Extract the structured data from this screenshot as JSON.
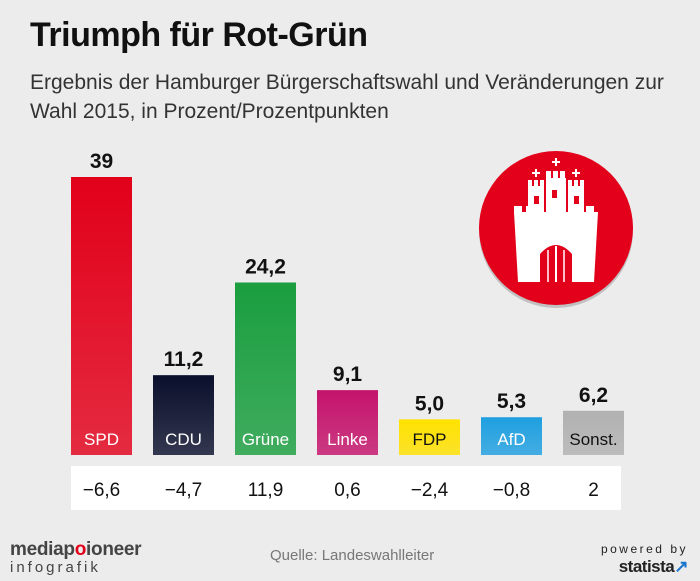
{
  "title": "Triumph für Rot-Grün",
  "subtitle": "Ergebnis der Hamburger Bürgerschaftswahl und Veränderungen zur Wahl 2015, in Prozent/Prozentpunkten",
  "chart_data": {
    "type": "bar",
    "title": "Triumph für Rot-Grün",
    "subtitle": "Ergebnis der Hamburger Bürgerschaftswahl und Veränderungen zur Wahl 2015, in Prozent/Prozentpunkten",
    "categories": [
      "SPD",
      "CDU",
      "Grüne",
      "Linke",
      "FDP",
      "AfD",
      "Sonst."
    ],
    "values": [
      39,
      11.2,
      24.2,
      9.1,
      5.0,
      5.3,
      6.2
    ],
    "value_labels": [
      "39",
      "11,2",
      "24,2",
      "9,1",
      "5,0",
      "5,3",
      "6,2"
    ],
    "change_labels": [
      "−6,6",
      "−4,7",
      "11,9",
      "0,6",
      "−2,4",
      "−0,8",
      "2"
    ],
    "changes": [
      -6.6,
      -4.7,
      11.9,
      0.6,
      -2.4,
      -0.8,
      2
    ],
    "colors": [
      "#e2001a",
      "#0a0f2c",
      "#1a9e3f",
      "#c4136b",
      "#ffe100",
      "#1f9fe0",
      "#b1b1b1"
    ],
    "label_colors": [
      "#ffffff",
      "#ffffff",
      "#ffffff",
      "#ffffff",
      "#111111",
      "#ffffff",
      "#111111"
    ],
    "ylim": [
      0,
      39
    ],
    "xlabel": "",
    "ylabel": ""
  },
  "emblem": {
    "name": "Hamburg coat of arms",
    "circle_color": "#e2001a",
    "castle_color": "#ffffff"
  },
  "footer": {
    "logo_line1_a": "media",
    "logo_line1_b": "p",
    "logo_line1_c": "o",
    "logo_line1_d": "ioneer",
    "logo_line2": "infografik",
    "source": "Quelle: Landeswahlleiter",
    "powered_by": "powered by",
    "statista": "statista"
  }
}
